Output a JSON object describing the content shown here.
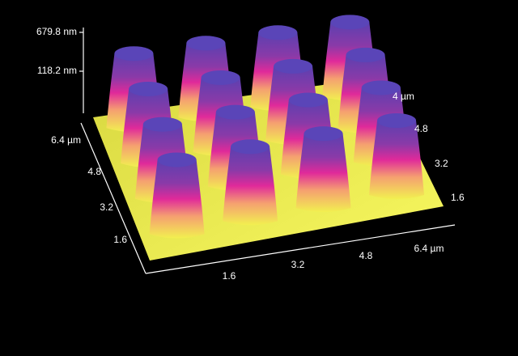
{
  "z_axis": {
    "labels": [
      "679.8 nm",
      "118.2 nm"
    ]
  },
  "left_axis": {
    "labels": [
      "6.4 µm",
      "4.8",
      "3.2",
      "1.6"
    ]
  },
  "bottom_axis": {
    "labels": [
      "1.6",
      "3.2",
      "4.8",
      "6.4 µm"
    ]
  },
  "right_axis": {
    "labels": [
      "4 µm",
      "4.8",
      "3.2",
      "1.6"
    ]
  }
}
